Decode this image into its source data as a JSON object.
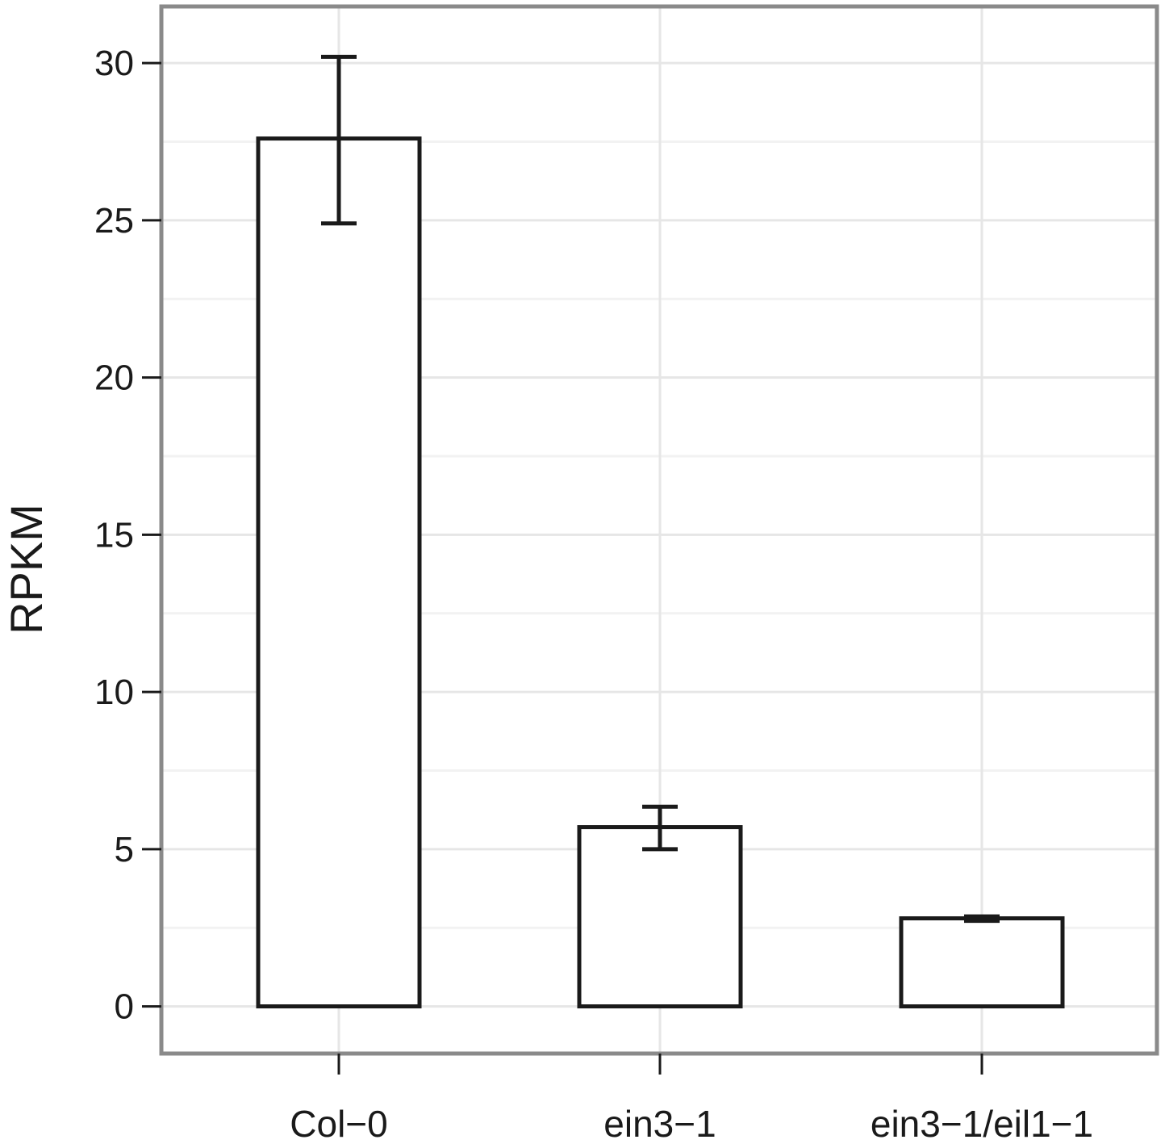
{
  "chart_data": {
    "type": "bar",
    "title": "",
    "xlabel": "",
    "ylabel": "RPKM",
    "categories": [
      "Col−0",
      "ein3−1",
      "ein3−1/eil1−1"
    ],
    "values": [
      27.6,
      5.7,
      2.8
    ],
    "error_low": [
      24.9,
      5.0,
      2.72
    ],
    "error_high": [
      30.2,
      6.35,
      2.86
    ],
    "ylim": [
      -1.5,
      31.8
    ],
    "yticks": [
      0,
      5,
      10,
      15,
      20,
      25,
      30
    ],
    "ytick_labels": [
      "0",
      "5",
      "10",
      "15",
      "20",
      "25",
      "30"
    ],
    "grid": true,
    "legend": "none",
    "colors": {
      "bar_fill": "#ffffff",
      "bar_stroke": "#1a1a1a",
      "panel_border": "#8a8a8a",
      "grid_major": "#e6e6e6",
      "grid_minor": "#f2f2f2",
      "error_bar": "#1a1a1a"
    }
  }
}
